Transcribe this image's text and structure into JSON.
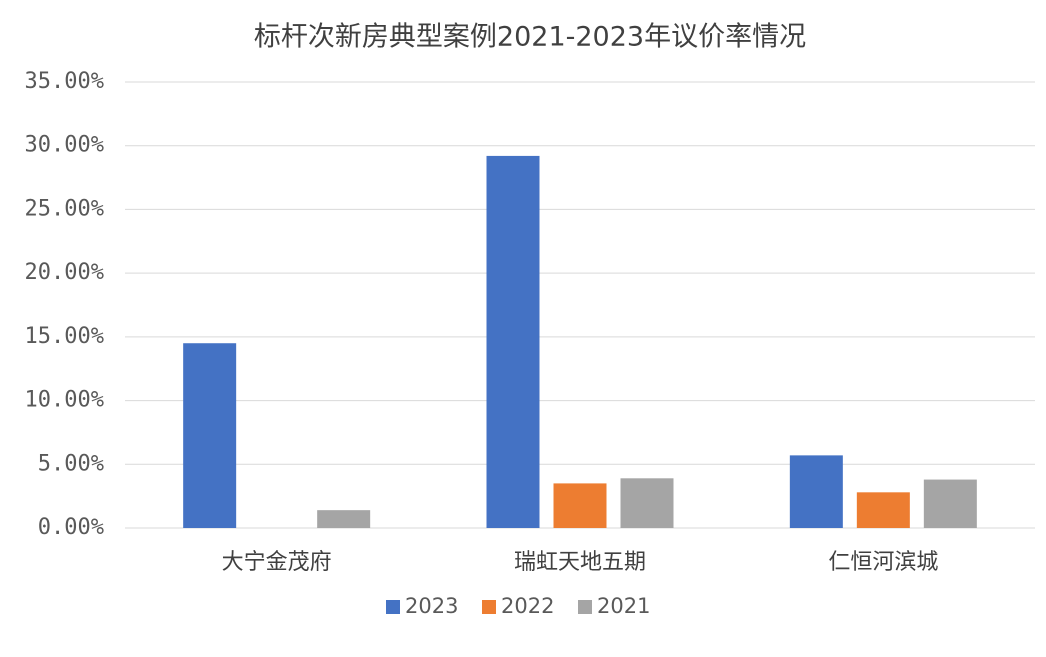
{
  "chart_data": {
    "type": "bar",
    "title": "标杆次新房典型案例2021-2023年议价率情况",
    "categories": [
      "大宁金茂府",
      "瑞虹天地五期",
      "仁恒河滨城"
    ],
    "series": [
      {
        "name": "2023",
        "color": "#4472c4",
        "values": [
          14.5,
          29.2,
          5.7
        ]
      },
      {
        "name": "2022",
        "color": "#ed7d31",
        "values": [
          0,
          3.5,
          2.8
        ]
      },
      {
        "name": "2021",
        "color": "#a5a5a5",
        "values": [
          1.4,
          3.9,
          3.8
        ]
      }
    ],
    "ylim": [
      0,
      35
    ],
    "yticks": [
      {
        "value": 0,
        "label": "0.00%"
      },
      {
        "value": 5,
        "label": "5.00%"
      },
      {
        "value": 10,
        "label": "10.00%"
      },
      {
        "value": 15,
        "label": "15.00%"
      },
      {
        "value": 20,
        "label": "20.00%"
      },
      {
        "value": 25,
        "label": "25.00%"
      },
      {
        "value": 30,
        "label": "30.00%"
      },
      {
        "value": 35,
        "label": "35.00%"
      }
    ],
    "grid": true,
    "legend": "bottom"
  }
}
